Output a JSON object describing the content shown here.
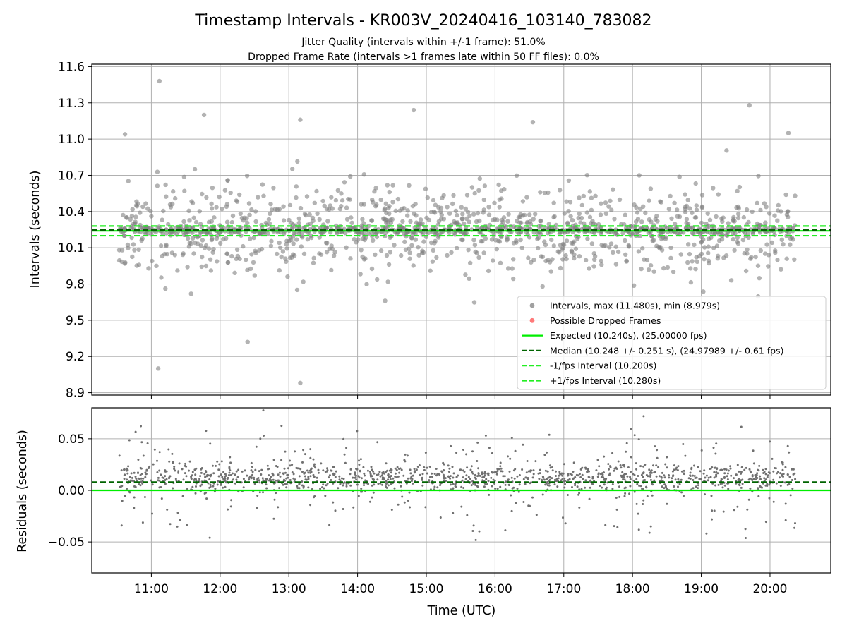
{
  "chart_data": [
    {
      "type": "scatter",
      "title": "Timestamp Intervals - KR003V_20240416_103140_783082",
      "subtitle_lines": [
        "Jitter Quality (intervals within +/-1 frame): 51.0%",
        "Dropped Frame Rate (intervals >1 frames late within 50 FF files): 0.0%"
      ],
      "xlabel": "",
      "ylabel": "Intervals (seconds)",
      "x_range": [
        "10:08",
        "20:53"
      ],
      "x_data_range": [
        "10:32",
        "20:22"
      ],
      "ylim": [
        8.88,
        11.62
      ],
      "y_ticks": [
        {
          "v": 8.9,
          "label": "8.9"
        },
        {
          "v": 9.2,
          "label": "9.2"
        },
        {
          "v": 9.5,
          "label": "9.5"
        },
        {
          "v": 9.8,
          "label": "9.8"
        },
        {
          "v": 10.1,
          "label": "10.1"
        },
        {
          "v": 10.4,
          "label": "10.4"
        },
        {
          "v": 10.7,
          "label": "10.7"
        },
        {
          "v": 11.0,
          "label": "11.0"
        },
        {
          "v": 11.3,
          "label": "11.3"
        },
        {
          "v": 11.6,
          "label": "11.6"
        }
      ],
      "grid": true,
      "legend_position": "lower-right",
      "series": [
        {
          "name": "Intervals, max (11.480s), min (8.979s)",
          "kind": "points",
          "color": "#808080",
          "sample_points": [
            {
              "x": "10:37",
              "y": 11.04
            },
            {
              "x": "11:07",
              "y": 11.48
            },
            {
              "x": "11:06",
              "y": 9.1
            },
            {
              "x": "11:46",
              "y": 11.2
            },
            {
              "x": "12:24",
              "y": 9.32
            },
            {
              "x": "13:10",
              "y": 8.98
            },
            {
              "x": "13:10",
              "y": 11.16
            },
            {
              "x": "14:49",
              "y": 11.24
            },
            {
              "x": "16:33",
              "y": 11.14
            },
            {
              "x": "19:42",
              "y": 11.28
            },
            {
              "x": "20:16",
              "y": 11.05
            }
          ]
        },
        {
          "name": "Possible Dropped Frames",
          "kind": "points",
          "color": "#ff4d4d",
          "values": []
        },
        {
          "name": "Expected (10.240s), (25.00000 fps)",
          "kind": "hline",
          "y": 10.24,
          "color": "#00ee00",
          "style": "solid"
        },
        {
          "name": "Median (10.248 +/- 0.251 s), (24.97989 +/- 0.61 fps)",
          "kind": "hline",
          "y": 10.248,
          "color": "#006400",
          "style": "dashed"
        },
        {
          "name": "-1/fps Interval (10.200s)",
          "kind": "hline",
          "y": 10.2,
          "color": "#22ee22",
          "style": "dashed"
        },
        {
          "name": "+1/fps Interval (10.280s)",
          "kind": "hline",
          "y": 10.28,
          "color": "#22ee22",
          "style": "dashed"
        }
      ]
    },
    {
      "type": "scatter",
      "title": "",
      "xlabel": "Time (UTC)",
      "ylabel": "Residuals (seconds)",
      "x_range": [
        "10:08",
        "20:53"
      ],
      "ylim": [
        -0.08,
        0.08
      ],
      "y_ticks": [
        {
          "v": 0.05,
          "label": "0.05"
        },
        {
          "v": 0.0,
          "label": "0.00"
        },
        {
          "v": -0.05,
          "label": "−0.05"
        }
      ],
      "x_ticks": [
        "11:00",
        "12:00",
        "13:00",
        "14:00",
        "15:00",
        "16:00",
        "17:00",
        "18:00",
        "19:00",
        "20:00"
      ],
      "grid": true,
      "series": [
        {
          "name": "",
          "kind": "points",
          "color": "#808080"
        },
        {
          "name": "",
          "kind": "hline",
          "y": 0.0,
          "color": "#00ee00",
          "style": "solid"
        },
        {
          "name": "",
          "kind": "hline",
          "y": 0.008,
          "color": "#006400",
          "style": "dashed"
        }
      ]
    }
  ]
}
